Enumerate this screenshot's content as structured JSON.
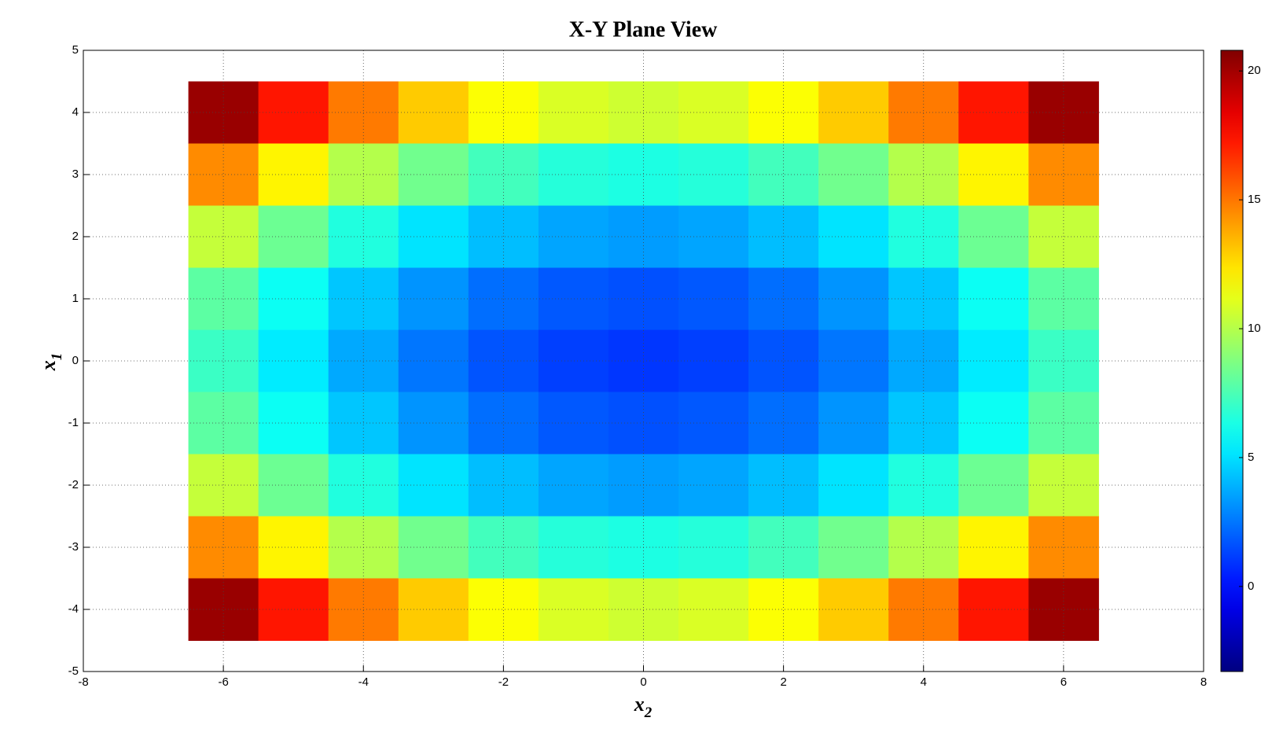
{
  "chart_data": {
    "type": "heatmap",
    "title": "X-Y Plane View",
    "xlabel": {
      "base": "x",
      "subscript": "2"
    },
    "ylabel": {
      "base": "x",
      "subscript": "1"
    },
    "x": [
      -6,
      -5,
      -4,
      -3,
      -2,
      -1,
      0,
      1,
      2,
      3,
      4,
      5,
      6
    ],
    "y": [
      4,
      3,
      2,
      1,
      0,
      -1,
      -2,
      -3,
      -4
    ],
    "z": [
      [
        20.2,
        17.3,
        14.9,
        13.0,
        11.7,
        10.9,
        10.6,
        10.9,
        11.7,
        13.0,
        14.9,
        17.3,
        20.2
      ],
      [
        14.5,
        12.0,
        10.0,
        8.4,
        7.3,
        6.6,
        6.4,
        6.6,
        7.3,
        8.4,
        10.0,
        12.0,
        14.5
      ],
      [
        10.4,
        8.3,
        6.5,
        5.1,
        4.2,
        3.6,
        3.4,
        3.6,
        4.2,
        5.1,
        6.5,
        8.3,
        10.4
      ],
      [
        7.9,
        6.0,
        4.4,
        3.2,
        2.3,
        1.8,
        1.6,
        1.8,
        2.3,
        3.2,
        4.4,
        6.0,
        7.9
      ],
      [
        7.1,
        5.3,
        3.7,
        2.5,
        1.7,
        1.2,
        1.0,
        1.2,
        1.7,
        2.5,
        3.7,
        5.3,
        7.1
      ],
      [
        7.9,
        6.0,
        4.4,
        3.2,
        2.3,
        1.8,
        1.6,
        1.8,
        2.3,
        3.2,
        4.4,
        6.0,
        7.9
      ],
      [
        10.4,
        8.3,
        6.5,
        5.1,
        4.2,
        3.6,
        3.4,
        3.6,
        4.2,
        5.1,
        6.5,
        8.3,
        10.4
      ],
      [
        14.5,
        12.0,
        10.0,
        8.4,
        7.3,
        6.6,
        6.4,
        6.6,
        7.3,
        8.4,
        10.0,
        12.0,
        14.5
      ],
      [
        20.2,
        17.3,
        14.9,
        13.0,
        11.7,
        10.9,
        10.6,
        10.9,
        11.7,
        13.0,
        14.9,
        17.3,
        20.2
      ]
    ],
    "xlim": [
      -8,
      8
    ],
    "xticks": [
      -8,
      -6,
      -4,
      -2,
      0,
      2,
      4,
      6,
      8
    ],
    "ylim": [
      -5,
      5
    ],
    "yticks": [
      -5,
      -4,
      -3,
      -2,
      -1,
      0,
      1,
      2,
      3,
      4,
      5
    ],
    "colormap": "jet",
    "clim": [
      -3.3,
      20.8
    ],
    "cticks": [
      0,
      5,
      10,
      15,
      20
    ],
    "grid": true
  }
}
